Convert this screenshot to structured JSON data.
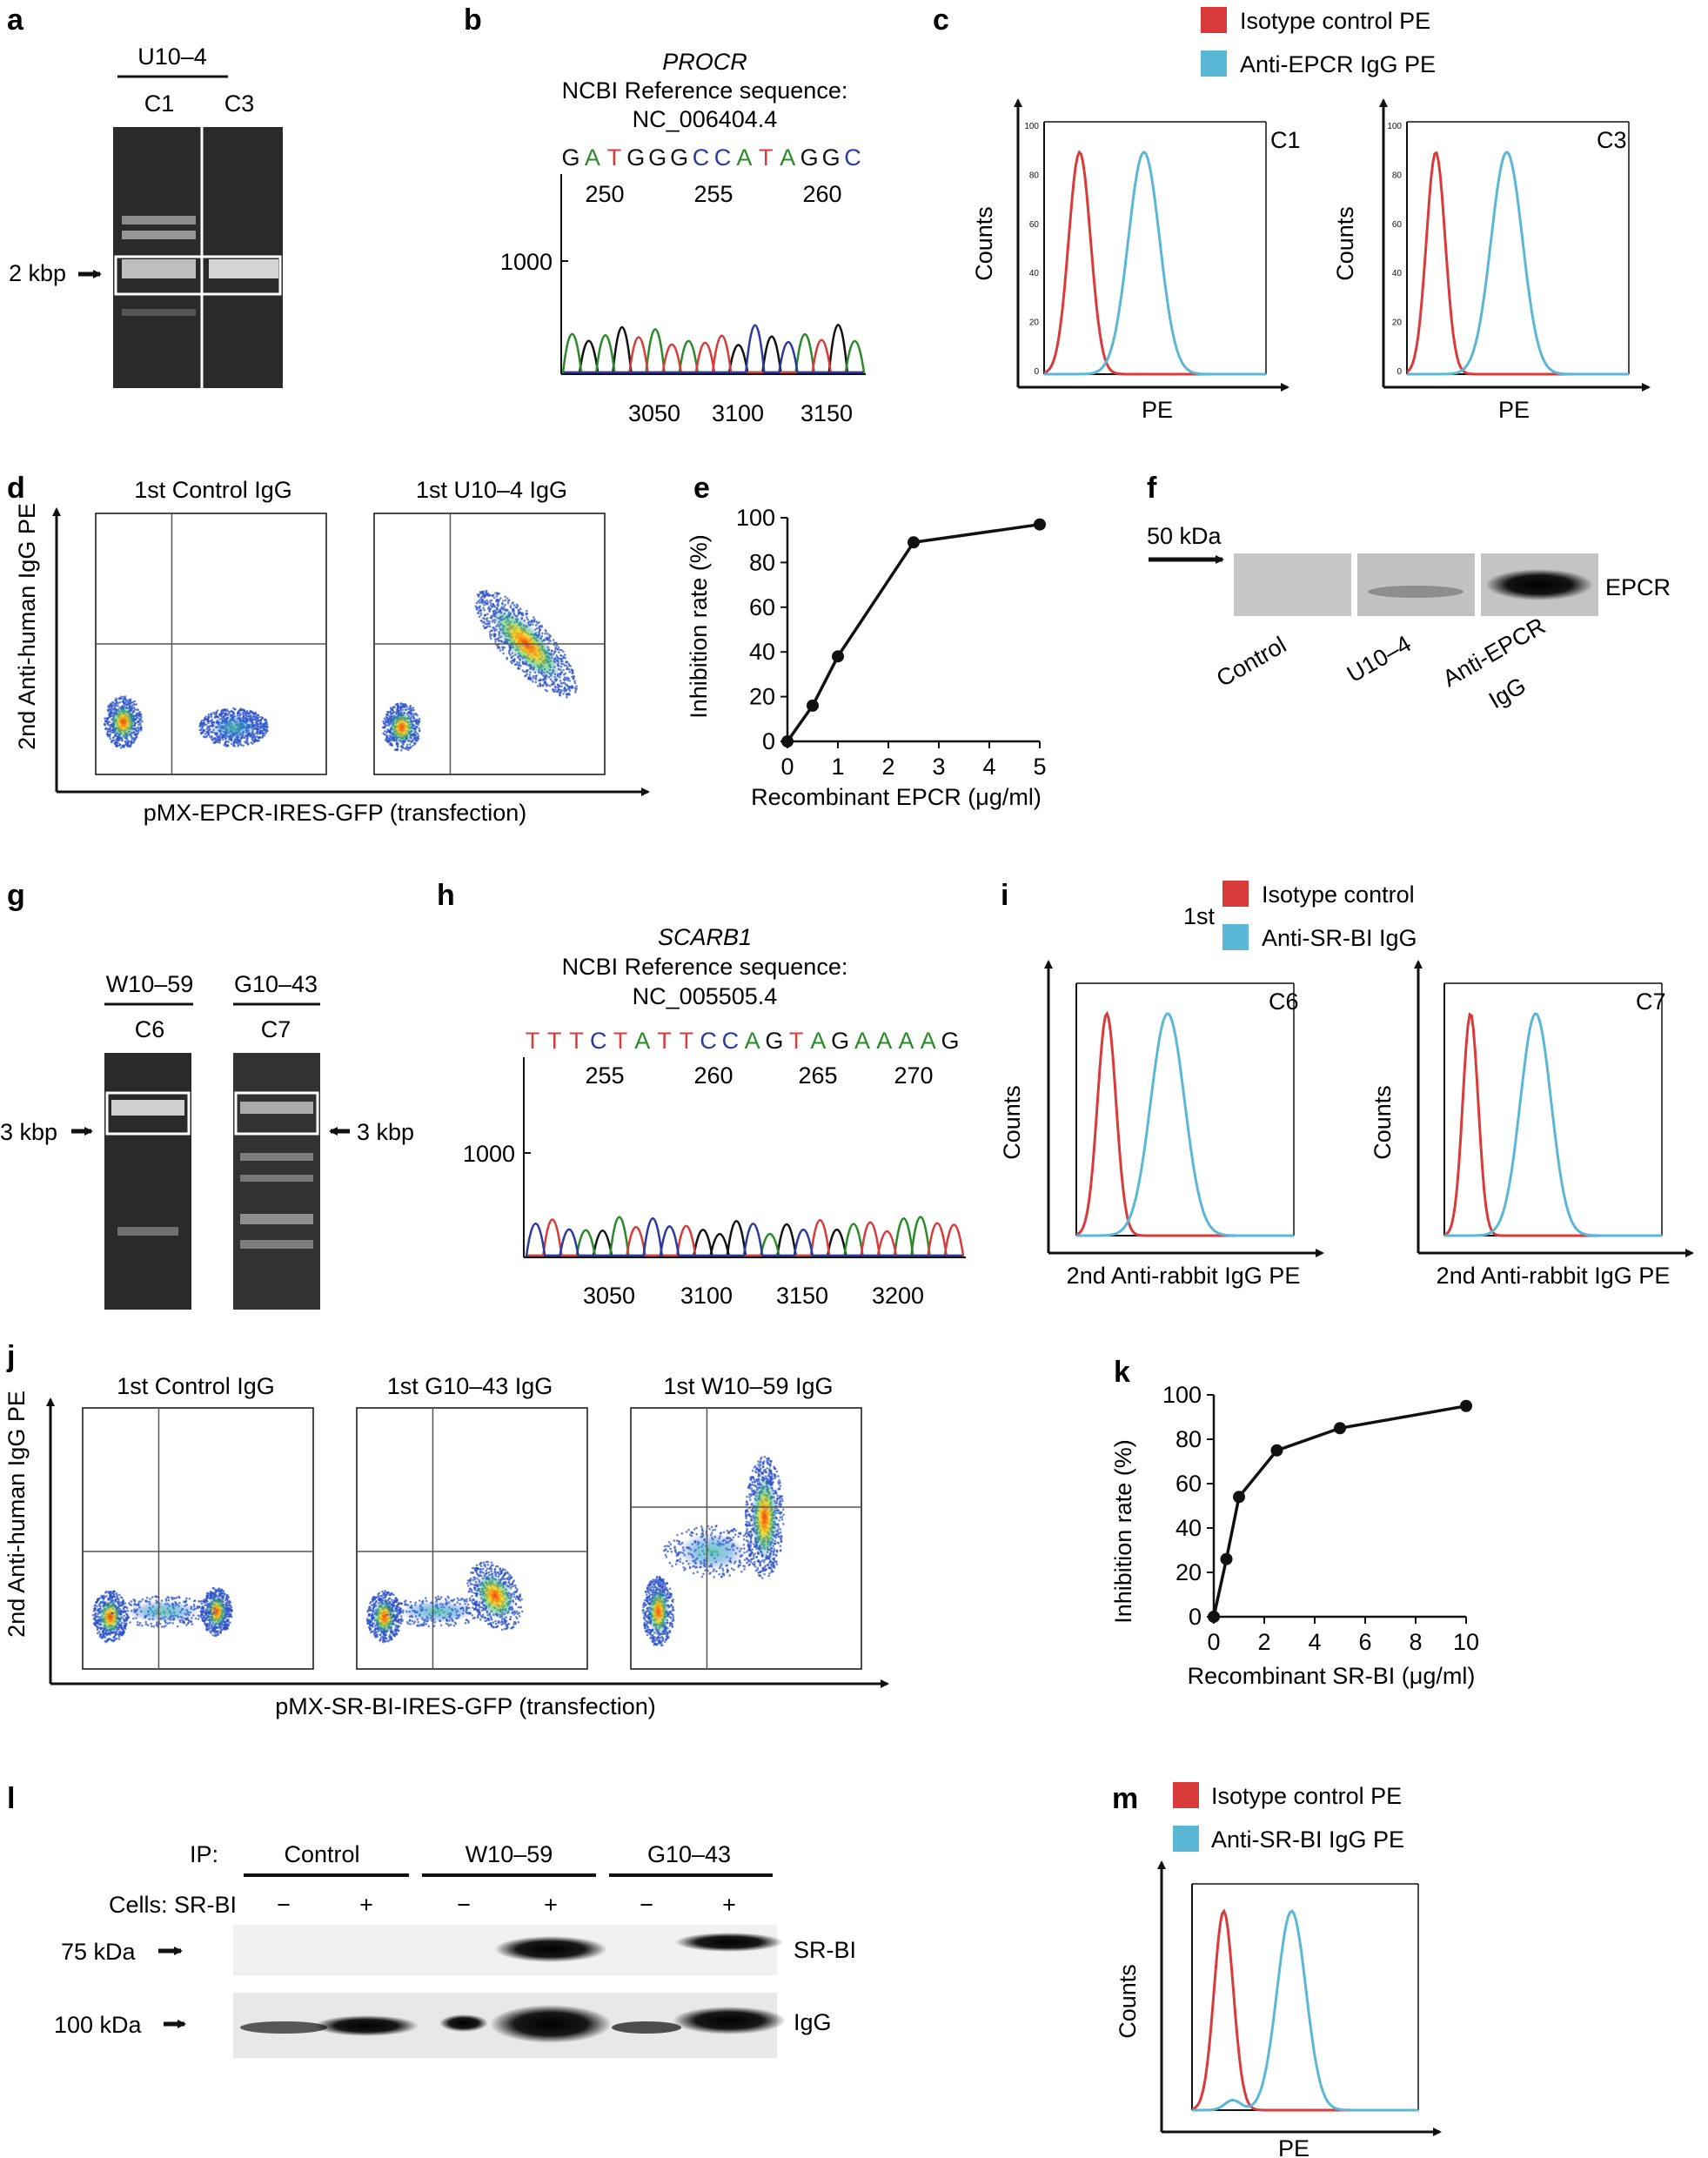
{
  "colors": {
    "red": "#d93a3a",
    "blue": "#5bb7d6",
    "black": "#111111",
    "green": "#2a8a2a",
    "navy": "#2a3aa0"
  },
  "a": {
    "label": "a",
    "group": "U10–4",
    "lanes": [
      "C1",
      "C3"
    ],
    "marker": "2 kbp"
  },
  "b": {
    "label": "b",
    "gene": "PROCR",
    "ref": "NCBI Reference sequence:",
    "acc": "NC_006404.4",
    "seq": [
      "G",
      "A",
      "T",
      "G",
      "G",
      "G",
      "C",
      "C",
      "A",
      "T",
      "A",
      "G",
      "G",
      "C"
    ],
    "pos": [
      "250",
      "255",
      "260"
    ],
    "ytick": "1000",
    "xticks": [
      "3050",
      "3100",
      "3150"
    ]
  },
  "c": {
    "label": "c",
    "legend": [
      "Isotype control PE",
      "Anti-EPCR IgG PE"
    ],
    "panels": [
      "C1",
      "C3"
    ],
    "ylabel": "Counts",
    "xlabel": "PE",
    "yticks": [
      "100",
      "80",
      "60",
      "40",
      "20",
      "0"
    ]
  },
  "d": {
    "label": "d",
    "titles": [
      "1st Control IgG",
      "1st U10–4 IgG"
    ],
    "ylabel": "2nd Anti-human IgG PE",
    "xlabel": "pMX-EPCR-IRES-GFP (transfection)"
  },
  "e": {
    "label": "e",
    "ylabel": "Inhibition rate (%)",
    "xlabel": "Recombinant EPCR (μg/ml)",
    "yticks": [
      "0",
      "20",
      "40",
      "60",
      "80",
      "100"
    ],
    "xticks": [
      "0",
      "1",
      "2",
      "3",
      "4",
      "5"
    ]
  },
  "f": {
    "label": "f",
    "marker": "50 kDa",
    "band": "EPCR",
    "lanes": [
      "Control",
      "U10–4",
      "Anti-EPCR",
      "IgG"
    ]
  },
  "g": {
    "label": "g",
    "groups": [
      "W10–59",
      "G10–43"
    ],
    "lanes": [
      "C6",
      "C7"
    ],
    "marker": "3 kbp"
  },
  "h": {
    "label": "h",
    "gene": "SCARB1",
    "ref": "NCBI Reference sequence:",
    "acc": "NC_005505.4",
    "seq": [
      "T",
      "T",
      "T",
      "C",
      "T",
      "A",
      "T",
      "T",
      "C",
      "C",
      "A",
      "G",
      "T",
      "A",
      "G",
      "A",
      "A",
      "A",
      "A",
      "G"
    ],
    "pos": [
      "255",
      "260",
      "265",
      "270"
    ],
    "ytick": "1000",
    "xticks": [
      "3050",
      "3100",
      "3150",
      "3200"
    ]
  },
  "i": {
    "label": "i",
    "prefix": "1st",
    "legend": [
      "Isotype control",
      "Anti-SR-BI IgG"
    ],
    "panels": [
      "C6",
      "C7"
    ],
    "ylabel": "Counts",
    "xlabel": "2nd Anti-rabbit IgG PE"
  },
  "j": {
    "label": "j",
    "titles": [
      "1st Control IgG",
      "1st G10–43 IgG",
      "1st W10–59 IgG"
    ],
    "ylabel": "2nd Anti-human IgG PE",
    "xlabel": "pMX-SR-BI-IRES-GFP (transfection)"
  },
  "k": {
    "label": "k",
    "ylabel": "Inhibition rate (%)",
    "xlabel": "Recombinant SR-BI (μg/ml)",
    "yticks": [
      "0",
      "20",
      "40",
      "60",
      "80",
      "100"
    ],
    "xticks": [
      "0",
      "2",
      "4",
      "6",
      "8",
      "10"
    ]
  },
  "l": {
    "label": "l",
    "ip": "IP:",
    "groups": [
      "Control",
      "W10–59",
      "G10–43"
    ],
    "cells": "Cells: SR-BI",
    "signs": [
      "−",
      "+",
      "−",
      "+",
      "−",
      "+"
    ],
    "markers": [
      "75 kDa",
      "100 kDa"
    ],
    "bands": [
      "SR-BI",
      "IgG"
    ]
  },
  "m": {
    "label": "m",
    "legend": [
      "Isotype control PE",
      "Anti-SR-BI IgG PE"
    ],
    "ylabel": "Counts",
    "xlabel": "PE"
  },
  "chart_data": [
    {
      "type": "line",
      "panel": "e",
      "ylabel": "Inhibition rate (%)",
      "xlabel": "Recombinant EPCR (μg/ml)",
      "x": [
        0,
        0.5,
        1,
        2.5,
        5
      ],
      "values": [
        0,
        16,
        38,
        89,
        97
      ],
      "xlim": [
        0,
        5
      ],
      "ylim": [
        0,
        100
      ]
    },
    {
      "type": "line",
      "panel": "k",
      "ylabel": "Inhibition rate (%)",
      "xlabel": "Recombinant SR-BI (μg/ml)",
      "x": [
        0,
        0.5,
        1,
        2.5,
        5,
        10
      ],
      "values": [
        0,
        26,
        54,
        75,
        85,
        95
      ],
      "xlim": [
        0,
        10
      ],
      "ylim": [
        0,
        100
      ]
    }
  ]
}
